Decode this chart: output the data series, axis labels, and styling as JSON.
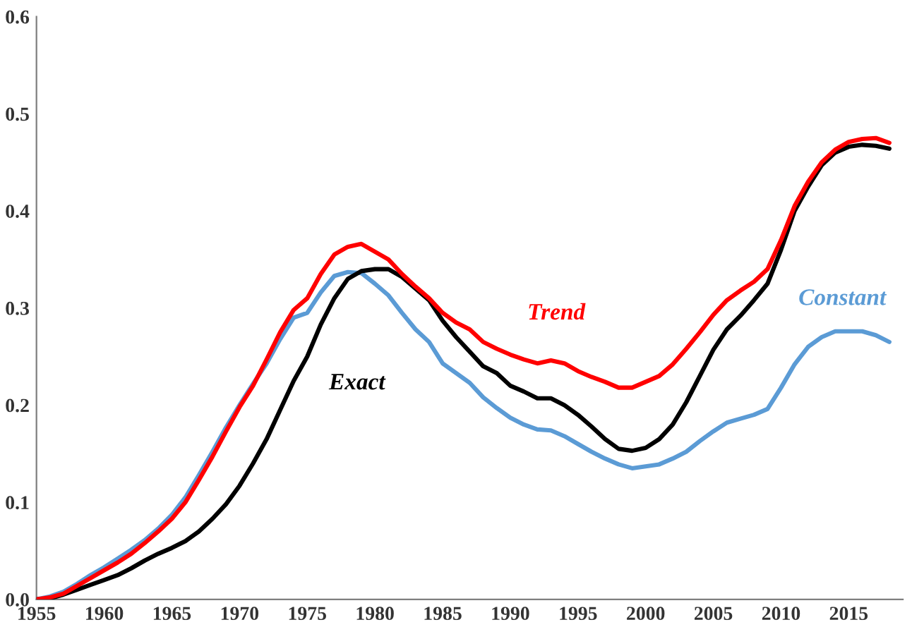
{
  "chart_data": {
    "type": "line",
    "x": [
      1955,
      1956,
      1957,
      1958,
      1959,
      1960,
      1961,
      1962,
      1963,
      1964,
      1965,
      1966,
      1967,
      1968,
      1969,
      1970,
      1971,
      1972,
      1973,
      1974,
      1975,
      1976,
      1977,
      1978,
      1979,
      1980,
      1981,
      1982,
      1983,
      1984,
      1985,
      1986,
      1987,
      1988,
      1989,
      1990,
      1991,
      1992,
      1993,
      1994,
      1995,
      1996,
      1997,
      1998,
      1999,
      2000,
      2001,
      2002,
      2003,
      2004,
      2005,
      2006,
      2007,
      2008,
      2009,
      2010,
      2011,
      2012,
      2013,
      2014,
      2015,
      2016,
      2017,
      2018
    ],
    "series": [
      {
        "name": "Trend",
        "color": "#ff0000",
        "values": [
          0,
          0.002,
          0.006,
          0.014,
          0.022,
          0.03,
          0.038,
          0.047,
          0.058,
          0.07,
          0.083,
          0.1,
          0.123,
          0.147,
          0.173,
          0.198,
          0.22,
          0.247,
          0.275,
          0.298,
          0.31,
          0.335,
          0.355,
          0.363,
          0.366,
          0.358,
          0.35,
          0.335,
          0.322,
          0.31,
          0.295,
          0.285,
          0.278,
          0.265,
          0.258,
          0.252,
          0.247,
          0.243,
          0.246,
          0.243,
          0.235,
          0.229,
          0.224,
          0.218,
          0.218,
          0.224,
          0.23,
          0.242,
          0.258,
          0.275,
          0.293,
          0.308,
          0.318,
          0.327,
          0.34,
          0.37,
          0.405,
          0.43,
          0.45,
          0.463,
          0.471,
          0.474,
          0.475,
          0.47
        ]
      },
      {
        "name": "Exact",
        "color": "#000000",
        "values": [
          0,
          0.001,
          0.005,
          0.01,
          0.015,
          0.02,
          0.025,
          0.032,
          0.04,
          0.047,
          0.053,
          0.06,
          0.07,
          0.083,
          0.098,
          0.117,
          0.14,
          0.165,
          0.195,
          0.225,
          0.25,
          0.283,
          0.31,
          0.33,
          0.338,
          0.34,
          0.34,
          0.332,
          0.32,
          0.308,
          0.287,
          0.27,
          0.255,
          0.24,
          0.233,
          0.22,
          0.214,
          0.207,
          0.207,
          0.2,
          0.19,
          0.178,
          0.165,
          0.155,
          0.153,
          0.156,
          0.165,
          0.18,
          0.203,
          0.23,
          0.257,
          0.278,
          0.292,
          0.308,
          0.325,
          0.36,
          0.4,
          0.425,
          0.447,
          0.46,
          0.466,
          0.468,
          0.467,
          0.464
        ]
      },
      {
        "name": "Constant",
        "color": "#5b9bd5",
        "values": [
          0,
          0.003,
          0.008,
          0.016,
          0.025,
          0.033,
          0.042,
          0.051,
          0.061,
          0.073,
          0.087,
          0.105,
          0.128,
          0.152,
          0.177,
          0.2,
          0.222,
          0.243,
          0.268,
          0.29,
          0.295,
          0.316,
          0.333,
          0.337,
          0.336,
          0.325,
          0.313,
          0.295,
          0.278,
          0.265,
          0.243,
          0.233,
          0.223,
          0.208,
          0.197,
          0.187,
          0.18,
          0.175,
          0.174,
          0.168,
          0.16,
          0.152,
          0.145,
          0.139,
          0.135,
          0.137,
          0.139,
          0.145,
          0.152,
          0.163,
          0.173,
          0.182,
          0.186,
          0.19,
          0.196,
          0.218,
          0.242,
          0.26,
          0.27,
          0.276,
          0.276,
          0.276,
          0.272,
          0.265
        ]
      }
    ],
    "xlim": [
      1955,
      2019
    ],
    "ylim": [
      0,
      0.6
    ],
    "xticks": [
      1955,
      1960,
      1965,
      1970,
      1975,
      1980,
      1985,
      1990,
      1995,
      2000,
      2005,
      2010,
      2015
    ],
    "yticks": [
      {
        "value": 0,
        "label": "0.0"
      },
      {
        "value": 0.1,
        "label": "0.1"
      },
      {
        "value": 0.2,
        "label": "0.2"
      },
      {
        "value": 0.3,
        "label": "0.3"
      },
      {
        "value": 0.4,
        "label": "0.4"
      },
      {
        "value": 0.5,
        "label": "0.5"
      },
      {
        "value": 0.6,
        "label": "0.6"
      }
    ],
    "grid": false,
    "legend": false
  }
}
